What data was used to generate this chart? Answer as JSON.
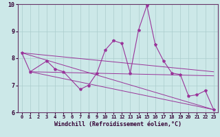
{
  "xlabel": "Windchill (Refroidissement éolien,°C)",
  "bg_color": "#cce8e8",
  "line_color": "#993399",
  "xlim": [
    -0.5,
    23.5
  ],
  "ylim": [
    6,
    10
  ],
  "yticks": [
    6,
    7,
    8,
    9,
    10
  ],
  "xticks": [
    0,
    1,
    2,
    3,
    4,
    5,
    6,
    7,
    8,
    9,
    10,
    11,
    12,
    13,
    14,
    15,
    16,
    17,
    18,
    19,
    20,
    21,
    22,
    23
  ],
  "curve_x": [
    0,
    1,
    3,
    4,
    5,
    7,
    8,
    9,
    10,
    11,
    12,
    13,
    14,
    15,
    16,
    17,
    18,
    19,
    20,
    21,
    22,
    23
  ],
  "curve_y": [
    8.2,
    7.5,
    7.9,
    7.6,
    7.5,
    6.85,
    7.0,
    7.45,
    8.3,
    8.65,
    8.55,
    7.45,
    9.05,
    9.95,
    8.5,
    7.9,
    7.45,
    7.4,
    6.6,
    6.65,
    6.8,
    6.1
  ],
  "trend_lines": [
    {
      "x": [
        0,
        23
      ],
      "y": [
        8.2,
        7.5
      ]
    },
    {
      "x": [
        0,
        23
      ],
      "y": [
        8.2,
        6.1
      ]
    },
    {
      "x": [
        1,
        23
      ],
      "y": [
        7.5,
        7.35
      ]
    },
    {
      "x": [
        1,
        23
      ],
      "y": [
        7.5,
        6.1
      ]
    }
  ],
  "grid_color": "#aacccc",
  "spine_color": "#663366",
  "xlabel_color": "#330033",
  "tick_label_color": "#330033"
}
